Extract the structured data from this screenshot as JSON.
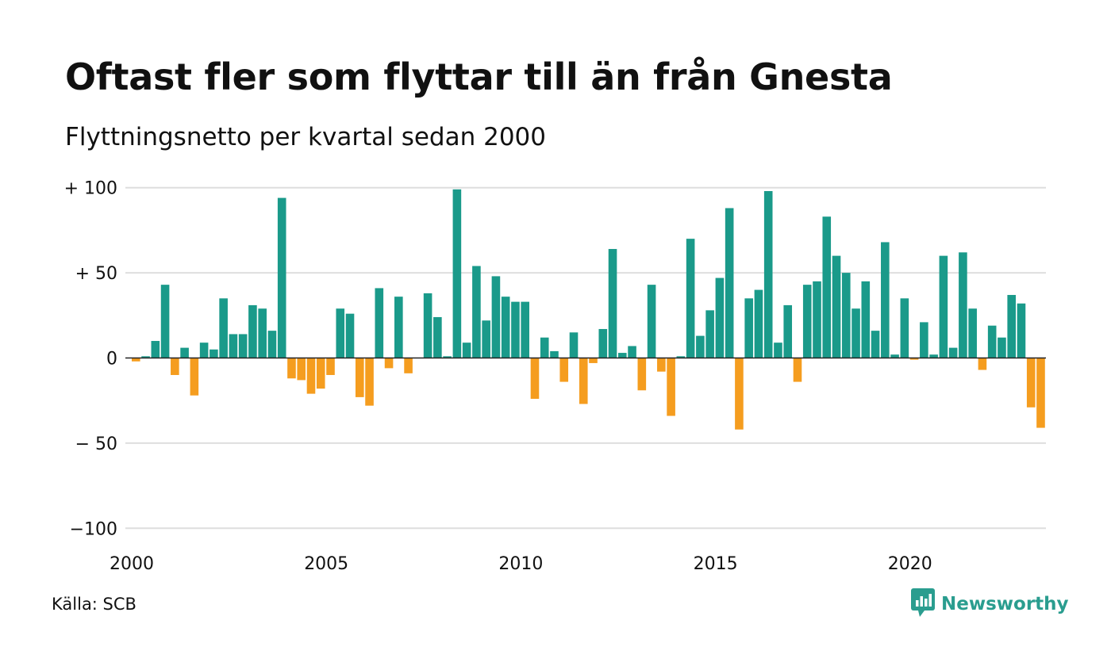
{
  "header": {
    "title": "Oftast fler som flyttar till än från Gnesta",
    "subtitle": "Flyttningsnetto per kvartal sedan 2000"
  },
  "footer": {
    "source": "Källa: SCB",
    "brand": "Newsworthy",
    "brand_icon": "chart-bubble-icon"
  },
  "colors": {
    "positive": "#1a9a8a",
    "negative": "#f59d1f",
    "grid": "#dedede",
    "zero_line": "#222222",
    "brand": "#2a9d8f"
  },
  "chart_data": {
    "type": "bar",
    "title": "Oftast fler som flyttar till än från Gnesta",
    "subtitle": "Flyttningsnetto per kvartal sedan 2000",
    "x_start": 2000,
    "x_step_years": 0.25,
    "x_ticks": [
      {
        "value": 2000,
        "label": "2000"
      },
      {
        "value": 2005,
        "label": "2005"
      },
      {
        "value": 2010,
        "label": "2010"
      },
      {
        "value": 2015,
        "label": "2015"
      },
      {
        "value": 2020,
        "label": "2020"
      }
    ],
    "y_ticks": [
      {
        "value": 100,
        "label": "+ 100"
      },
      {
        "value": 50,
        "label": "+  50"
      },
      {
        "value": 0,
        "label": "0"
      },
      {
        "value": -50,
        "label": "− 50"
      },
      {
        "value": -100,
        "label": "−100"
      }
    ],
    "ylim": [
      -100,
      100
    ],
    "grid": true,
    "values": [
      -2,
      1,
      10,
      43,
      -10,
      6,
      -22,
      9,
      5,
      35,
      14,
      14,
      31,
      29,
      16,
      94,
      -12,
      -13,
      -21,
      -18,
      -10,
      29,
      26,
      -23,
      -28,
      41,
      -6,
      36,
      -9,
      0,
      38,
      24,
      1,
      99,
      9,
      54,
      22,
      48,
      36,
      33,
      33,
      -24,
      12,
      4,
      -14,
      15,
      -27,
      -3,
      17,
      64,
      3,
      7,
      -19,
      43,
      -8,
      -34,
      1,
      70,
      13,
      28,
      47,
      88,
      -42,
      35,
      40,
      98,
      9,
      31,
      -14,
      43,
      45,
      83,
      60,
      50,
      29,
      45,
      16,
      68,
      2,
      35,
      -1,
      21,
      2,
      60,
      6,
      62,
      29,
      -7,
      19,
      12,
      37,
      32,
      -29,
      -41
    ]
  }
}
